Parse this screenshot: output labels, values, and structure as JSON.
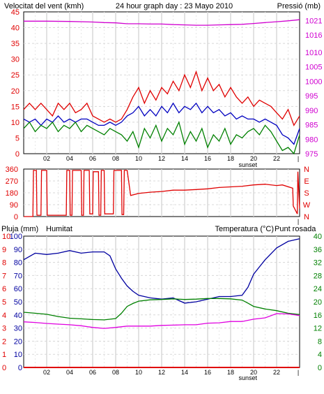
{
  "colors": {
    "background": "#ffffff",
    "plot_bg": "#ffffff",
    "grid": "#d8d8d8",
    "axis": "#000000",
    "wind_gust": "#e00000",
    "wind_avg": "#0000c0",
    "wind_min": "#008000",
    "pressure": "#d000d0",
    "direction": "#e00000",
    "humidity": "#0000a0",
    "temperature": "#008000",
    "dewpoint": "#e000e0",
    "rain": "#e00000",
    "label_red": "#e00000",
    "label_blue": "#0000a0",
    "label_green": "#008000",
    "label_magenta": "#d000d0"
  },
  "chart_data": [
    {
      "type": "line",
      "title": "24 hour graph day : 23 Mayo 2010",
      "ylabel": "Velocitat del vent (kmh)",
      "y2label": "Pressió (mb)",
      "xlim": [
        0,
        24
      ],
      "ylim": [
        0,
        45
      ],
      "y2lim": [
        975,
        1024
      ],
      "x_ticks": [
        "02",
        "04",
        "06",
        "08",
        "10",
        "12",
        "14",
        "16",
        "18",
        "20",
        "22"
      ],
      "x_tick_values": [
        2,
        4,
        6,
        8,
        10,
        12,
        14,
        16,
        18,
        20,
        22
      ],
      "x_annotation": "sunset",
      "x_annotation_at": 19.5,
      "y_ticks": [
        0,
        5,
        10,
        15,
        20,
        25,
        30,
        35,
        40,
        45
      ],
      "y2_ticks": [
        975,
        980,
        985,
        990,
        995,
        1000,
        1005,
        1010,
        1016,
        1021
      ],
      "grid": true,
      "series": [
        {
          "axis": "y2",
          "x": [
            0,
            2,
            4,
            6,
            7,
            8,
            9,
            10,
            11,
            12,
            13,
            14,
            15,
            16,
            17,
            18,
            19,
            20,
            21,
            22,
            23,
            24
          ],
          "values": [
            1020.8,
            1020.8,
            1020.7,
            1020.5,
            1020.3,
            1020.2,
            1019.9,
            1019.9,
            1019.8,
            1019.8,
            1019.6,
            1019.5,
            1019.4,
            1019.4,
            1019.5,
            1019.6,
            1019.7,
            1020.0,
            1020.3,
            1020.6,
            1020.9,
            1021.3
          ]
        },
        {
          "axis": "y",
          "x": [
            0,
            0.5,
            1,
            1.5,
            2,
            2.5,
            3,
            3.5,
            4,
            4.5,
            5,
            5.5,
            6,
            6.5,
            7,
            7.5,
            8,
            8.5,
            9,
            9.5,
            10,
            10.5,
            11,
            11.5,
            12,
            12.5,
            13,
            13.5,
            14,
            14.5,
            15,
            15.5,
            16,
            16.5,
            17,
            17.5,
            18,
            18.5,
            19,
            19.5,
            20,
            20.5,
            21,
            21.5,
            22,
            22.5,
            23,
            23.5,
            24
          ],
          "values": [
            14,
            16,
            14,
            16,
            14,
            12,
            16,
            14,
            16,
            13,
            14,
            16,
            12,
            11,
            10,
            11,
            10,
            11,
            14,
            18,
            21,
            16,
            20,
            17,
            21,
            19,
            23,
            20,
            25,
            21,
            26,
            20,
            24,
            20,
            22,
            18,
            21,
            18,
            16,
            18,
            15,
            17,
            16,
            15,
            13,
            11,
            14,
            9,
            12
          ]
        },
        {
          "axis": "y",
          "x": [
            0,
            0.5,
            1,
            1.5,
            2,
            2.5,
            3,
            3.5,
            4,
            4.5,
            5,
            5.5,
            6,
            6.5,
            7,
            7.5,
            8,
            8.5,
            9,
            9.5,
            10,
            10.5,
            11,
            11.5,
            12,
            12.5,
            13,
            13.5,
            14,
            14.5,
            15,
            15.5,
            16,
            16.5,
            17,
            17.5,
            18,
            18.5,
            19,
            19.5,
            20,
            20.5,
            21,
            21.5,
            22,
            22.5,
            23,
            23.5,
            24
          ],
          "values": [
            11,
            10,
            11,
            9,
            11,
            10,
            12,
            10,
            11,
            10,
            11,
            11,
            10,
            9,
            9,
            10,
            9,
            10,
            12,
            13,
            15,
            12,
            14,
            12,
            15,
            13,
            16,
            13,
            15,
            14,
            16,
            13,
            15,
            13,
            14,
            12,
            13,
            11,
            12,
            11,
            11,
            10,
            11,
            10,
            9,
            6,
            5,
            3,
            8
          ]
        },
        {
          "axis": "y",
          "x": [
            0,
            0.5,
            1,
            1.5,
            2,
            2.5,
            3,
            3.5,
            4,
            4.5,
            5,
            5.5,
            6,
            6.5,
            7,
            7.5,
            8,
            8.5,
            9,
            9.5,
            10,
            10.5,
            11,
            11.5,
            12,
            12.5,
            13,
            13.5,
            14,
            14.5,
            15,
            15.5,
            16,
            16.5,
            17,
            17.5,
            18,
            18.5,
            19,
            19.5,
            20,
            20.5,
            21,
            21.5,
            22,
            22.5,
            23,
            23.5,
            24
          ],
          "values": [
            8,
            10,
            7,
            9,
            8,
            10,
            7,
            9,
            8,
            10,
            7,
            9,
            8,
            7,
            6,
            8,
            7,
            6,
            4,
            7,
            2,
            8,
            5,
            9,
            4,
            8,
            6,
            10,
            3,
            7,
            4,
            8,
            2,
            6,
            4,
            8,
            3,
            6,
            5,
            7,
            8,
            6,
            9,
            7,
            4,
            1,
            2,
            0,
            6
          ]
        }
      ]
    },
    {
      "type": "line",
      "ylim": [
        0,
        360
      ],
      "xlim": [
        0,
        24
      ],
      "y_ticks": [
        0,
        90,
        180,
        270,
        360
      ],
      "y2_labels": [
        "N",
        "W",
        "S",
        "E",
        "N"
      ],
      "x_ticks": [
        "02",
        "04",
        "06",
        "08",
        "10",
        "12",
        "14",
        "16",
        "18",
        "20",
        "22"
      ],
      "x_tick_values": [
        2,
        4,
        6,
        8,
        10,
        12,
        14,
        16,
        18,
        20,
        22
      ],
      "grid": true,
      "series": [
        {
          "x": [
            0,
            0.8,
            0.85,
            1.1,
            1.15,
            1.5,
            1.55,
            2.0,
            2.05,
            3.7,
            3.75,
            4.0,
            4.05,
            4.2,
            4.25,
            5.0,
            5.05,
            5.2,
            5.25,
            5.7,
            5.75,
            6.0,
            6.05,
            6.5,
            6.55,
            6.7,
            6.75,
            7.0,
            7.05,
            7.8,
            7.85,
            8.5,
            8.55,
            8.7,
            8.75,
            9.0,
            9.3,
            10,
            11,
            12,
            13,
            14,
            15,
            16,
            17,
            18,
            19,
            20,
            21,
            22,
            22.5,
            23.4,
            23.45,
            23.8,
            23.85,
            24
          ],
          "values": [
            0,
            0,
            350,
            350,
            10,
            10,
            350,
            350,
            10,
            10,
            350,
            350,
            10,
            10,
            350,
            350,
            10,
            10,
            350,
            350,
            20,
            20,
            340,
            340,
            10,
            10,
            350,
            350,
            20,
            20,
            350,
            350,
            15,
            15,
            350,
            350,
            160,
            175,
            185,
            190,
            200,
            200,
            205,
            210,
            220,
            225,
            230,
            240,
            245,
            235,
            240,
            215,
            80,
            20,
            340,
            60
          ]
        }
      ]
    },
    {
      "type": "line",
      "y_left1_label": "Pluja (mm)",
      "y_left2_label": "Humitat",
      "y_right_label": "Temperatura (°C)",
      "y_right2_label": "Punt rosada",
      "xlim": [
        0,
        24
      ],
      "ylim_rain": [
        0,
        10
      ],
      "ylim_humidity": [
        0,
        100
      ],
      "ylim_temp": [
        0,
        40
      ],
      "rain_ticks": [
        0,
        1,
        2,
        3,
        4,
        5,
        6,
        7,
        8,
        9,
        10
      ],
      "humidity_ticks": [
        0,
        10,
        20,
        30,
        40,
        50,
        60,
        70,
        80,
        90,
        100
      ],
      "temp_ticks": [
        0,
        4,
        8,
        12,
        16,
        20,
        24,
        28,
        32,
        36,
        40
      ],
      "x_ticks": [
        "02",
        "04",
        "06",
        "08",
        "10",
        "12",
        "14",
        "16",
        "18",
        "20",
        "22"
      ],
      "x_tick_values": [
        2,
        4,
        6,
        8,
        10,
        12,
        14,
        16,
        18,
        20,
        22
      ],
      "x_annotation": "sunset",
      "x_annotation_at": 19.5,
      "grid": true,
      "series": [
        {
          "axis": "humidity",
          "x": [
            0,
            1,
            2,
            3,
            4,
            5,
            6,
            7,
            7.5,
            8,
            8.5,
            9,
            9.5,
            10,
            11,
            12,
            13,
            14,
            15,
            16,
            17,
            18,
            19,
            19.5,
            20,
            21,
            22,
            23,
            24
          ],
          "values": [
            82,
            87,
            86,
            87,
            89,
            87,
            88,
            88,
            85,
            75,
            68,
            62,
            58,
            55,
            53,
            52,
            53,
            49,
            50,
            52,
            54,
            54,
            55,
            61,
            71,
            82,
            91,
            96,
            98
          ]
        },
        {
          "axis": "temp",
          "x": [
            0,
            1,
            2,
            3,
            4,
            5,
            6,
            7,
            8,
            8.5,
            9,
            9.5,
            10,
            11,
            12,
            13,
            14,
            15,
            16,
            17,
            18,
            19,
            19.5,
            20,
            21,
            22,
            23,
            24
          ],
          "values": [
            16.8,
            16.5,
            16.2,
            15.5,
            15.0,
            14.8,
            14.6,
            14.5,
            14.9,
            16.5,
            18.6,
            19.5,
            20.2,
            20.6,
            20.7,
            20.9,
            20.7,
            20.8,
            21.0,
            21.0,
            20.9,
            20.5,
            19.6,
            18.6,
            17.8,
            17.3,
            16.5,
            16.1
          ]
        },
        {
          "axis": "temp",
          "x": [
            0,
            1,
            2,
            3,
            4,
            5,
            6,
            7,
            8,
            9,
            10,
            11,
            12,
            13,
            14,
            15,
            16,
            17,
            18,
            19,
            20,
            21,
            22,
            23,
            24
          ],
          "values": [
            13.9,
            13.7,
            13.4,
            13.2,
            13.0,
            12.7,
            12.2,
            11.9,
            12.2,
            12.6,
            12.6,
            12.6,
            12.8,
            12.9,
            13.0,
            13.0,
            13.5,
            13.6,
            14.0,
            14.0,
            14.7,
            15.1,
            16.4,
            16.3,
            15.8
          ]
        },
        {
          "axis": "rain",
          "x": [
            0,
            24
          ],
          "values": [
            0,
            0
          ]
        }
      ]
    }
  ]
}
